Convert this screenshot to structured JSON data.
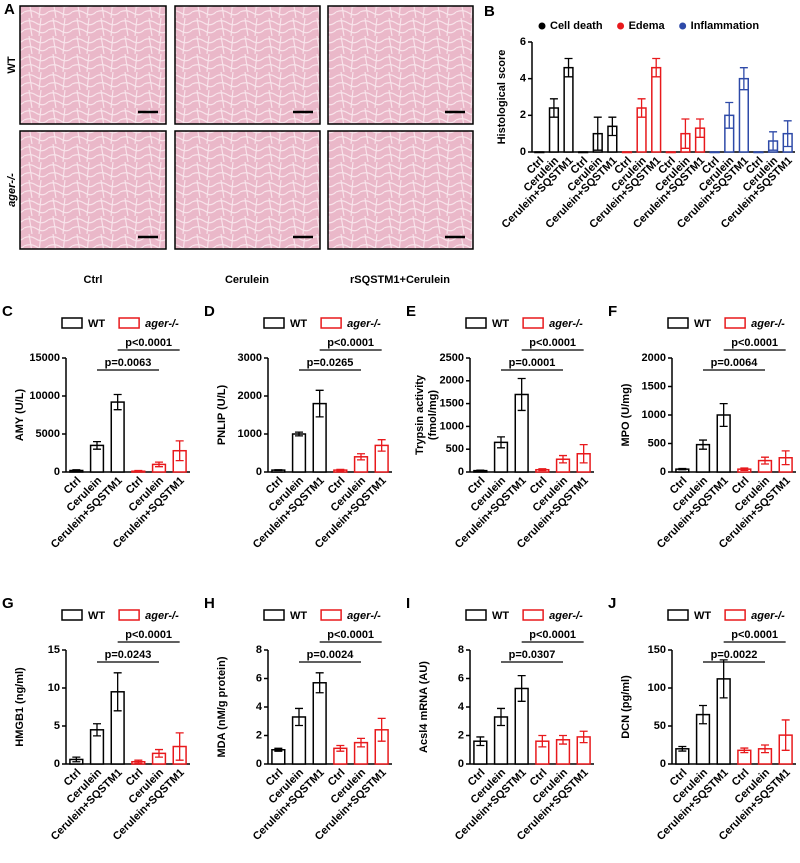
{
  "panel_a": {
    "letter": "A",
    "rows": [
      "WT",
      "ager-/-"
    ],
    "columns": [
      "Ctrl",
      "Cerulein",
      "rSQSTM1+Cerulein"
    ]
  },
  "chart_data": [
    {
      "type": "bar",
      "panel": "B",
      "ylabel": "Histological score",
      "ylim": [
        0,
        6
      ],
      "yticks": [
        0,
        2,
        4,
        6
      ],
      "categories": [
        "Ctrl",
        "Cerulein",
        "Cerulein+SQSTM1",
        "Ctrl",
        "Cerulein",
        "Cerulein+SQSTM1"
      ],
      "series": [
        {
          "name": "Cell death",
          "color": "#000000",
          "values": [
            0,
            2.4,
            4.6,
            0,
            1.0,
            1.4
          ],
          "errors": [
            0,
            0.5,
            0.5,
            0,
            0.9,
            0.5
          ]
        },
        {
          "name": "Edema",
          "color": "#e8191c",
          "values": [
            0,
            2.4,
            4.6,
            0,
            1.0,
            1.3
          ],
          "errors": [
            0,
            0.5,
            0.5,
            0,
            0.8,
            0.5
          ]
        },
        {
          "name": "Inflammation",
          "color": "#2e4aa8",
          "values": [
            0,
            2.0,
            4.0,
            0,
            0.6,
            1.0
          ],
          "errors": [
            0,
            0.7,
            0.6,
            0,
            0.5,
            0.7
          ]
        }
      ]
    },
    {
      "type": "bar",
      "panel": "C",
      "ylabel": "AMY (U/L)",
      "ylim": [
        0,
        15000
      ],
      "yticks": [
        0,
        5000,
        10000,
        15000
      ],
      "categories": [
        "Ctrl",
        "Cerulein",
        "Cerulein+SQSTM1",
        "Ctrl",
        "Cerulein",
        "Cerulein+SQSTM1"
      ],
      "series": [
        {
          "name": "WT",
          "color": "#000000",
          "values": [
            200,
            3500,
            9200,
            null,
            null,
            null
          ],
          "errors": [
            100,
            500,
            1000,
            null,
            null,
            null
          ]
        },
        {
          "name": "ager-/-",
          "color": "#e8191c",
          "values": [
            null,
            null,
            null,
            100,
            1000,
            2800
          ],
          "errors": [
            null,
            null,
            null,
            100,
            300,
            1300
          ]
        }
      ],
      "annotations": [
        "p=0.0063",
        "p<0.0001"
      ]
    },
    {
      "type": "bar",
      "panel": "D",
      "ylabel": "PNLIP (U/L)",
      "ylim": [
        0,
        3000
      ],
      "yticks": [
        0,
        1000,
        2000,
        3000
      ],
      "categories": [
        "Ctrl",
        "Cerulein",
        "Cerulein+SQSTM1",
        "Ctrl",
        "Cerulein",
        "Cerulein+SQSTM1"
      ],
      "series": [
        {
          "name": "WT",
          "color": "#000000",
          "values": [
            50,
            1000,
            1800,
            null,
            null,
            null
          ],
          "errors": [
            10,
            50,
            350,
            null,
            null,
            null
          ]
        },
        {
          "name": "ager-/-",
          "color": "#e8191c",
          "values": [
            null,
            null,
            null,
            50,
            400,
            700
          ],
          "errors": [
            null,
            null,
            null,
            20,
            80,
            150
          ]
        }
      ],
      "annotations": [
        "p=0.0265",
        "p<0.0001"
      ]
    },
    {
      "type": "bar",
      "panel": "E",
      "ylabel": [
        "Trypsin activity",
        "(fmol/mg)"
      ],
      "ylim": [
        0,
        2500
      ],
      "yticks": [
        0,
        500,
        1000,
        1500,
        2000,
        2500
      ],
      "categories": [
        "Ctrl",
        "Cerulein",
        "Cerulein+SQSTM1",
        "Ctrl",
        "Cerulein",
        "Cerulein+SQSTM1"
      ],
      "series": [
        {
          "name": "WT",
          "color": "#000000",
          "values": [
            30,
            650,
            1700,
            null,
            null,
            null
          ],
          "errors": [
            10,
            120,
            350,
            null,
            null,
            null
          ]
        },
        {
          "name": "ager-/-",
          "color": "#e8191c",
          "values": [
            null,
            null,
            null,
            50,
            280,
            400
          ],
          "errors": [
            null,
            null,
            null,
            20,
            80,
            200
          ]
        }
      ],
      "annotations": [
        "p=0.0001",
        "p<0.0001"
      ]
    },
    {
      "type": "bar",
      "panel": "F",
      "ylabel": "MPO (U/mg)",
      "ylim": [
        0,
        2000
      ],
      "yticks": [
        0,
        500,
        1000,
        1500,
        2000
      ],
      "categories": [
        "Ctrl",
        "Cerulein",
        "Cerulein+SQSTM1",
        "Ctrl",
        "Cerulein",
        "Cerulein+SQSTM1"
      ],
      "series": [
        {
          "name": "WT",
          "color": "#000000",
          "values": [
            50,
            480,
            1000,
            null,
            null,
            null
          ],
          "errors": [
            10,
            80,
            200,
            null,
            null,
            null
          ]
        },
        {
          "name": "ager-/-",
          "color": "#e8191c",
          "values": [
            null,
            null,
            null,
            50,
            200,
            250
          ],
          "errors": [
            null,
            null,
            null,
            20,
            60,
            120
          ]
        }
      ],
      "annotations": [
        "p=0.0064",
        "p<0.0001"
      ]
    },
    {
      "type": "bar",
      "panel": "G",
      "ylabel": "HMGB1 (ng/ml)",
      "ylim": [
        0,
        15
      ],
      "yticks": [
        0,
        5,
        10,
        15
      ],
      "categories": [
        "Ctrl",
        "Cerulein",
        "Cerulein+SQSTM1",
        "Ctrl",
        "Cerulein",
        "Cerulein+SQSTM1"
      ],
      "series": [
        {
          "name": "WT",
          "color": "#000000",
          "values": [
            0.6,
            4.5,
            9.5,
            null,
            null,
            null
          ],
          "errors": [
            0.3,
            0.8,
            2.5,
            null,
            null,
            null
          ]
        },
        {
          "name": "ager-/-",
          "color": "#e8191c",
          "values": [
            null,
            null,
            null,
            0.3,
            1.4,
            2.3
          ],
          "errors": [
            null,
            null,
            null,
            0.2,
            0.5,
            1.8
          ]
        }
      ],
      "annotations": [
        "p=0.0243",
        "p<0.0001"
      ]
    },
    {
      "type": "bar",
      "panel": "H",
      "ylabel": "MDA (nM/g protein)",
      "ylim": [
        0,
        8
      ],
      "yticks": [
        0,
        2,
        4,
        6,
        8
      ],
      "categories": [
        "Ctrl",
        "Cerulein",
        "Cerulein+SQSTM1",
        "Ctrl",
        "Cerulein",
        "Cerulein+SQSTM1"
      ],
      "series": [
        {
          "name": "WT",
          "color": "#000000",
          "values": [
            1.0,
            3.3,
            5.7,
            null,
            null,
            null
          ],
          "errors": [
            0.1,
            0.6,
            0.7,
            null,
            null,
            null
          ]
        },
        {
          "name": "ager-/-",
          "color": "#e8191c",
          "values": [
            null,
            null,
            null,
            1.1,
            1.5,
            2.4
          ],
          "errors": [
            null,
            null,
            null,
            0.2,
            0.3,
            0.8
          ]
        }
      ],
      "annotations": [
        "p=0.0024",
        "p<0.0001"
      ]
    },
    {
      "type": "bar",
      "panel": "I",
      "ylabel": "Acsl4 mRNA (AU)",
      "ylim": [
        0,
        8
      ],
      "yticks": [
        0,
        2,
        4,
        6,
        8
      ],
      "categories": [
        "Ctrl",
        "Cerulein",
        "Cerulein+SQSTM1",
        "Ctrl",
        "Cerulein",
        "Cerulein+SQSTM1"
      ],
      "series": [
        {
          "name": "WT",
          "color": "#000000",
          "values": [
            1.6,
            3.3,
            5.3,
            null,
            null,
            null
          ],
          "errors": [
            0.3,
            0.6,
            0.9,
            null,
            null,
            null
          ]
        },
        {
          "name": "ager-/-",
          "color": "#e8191c",
          "values": [
            null,
            null,
            null,
            1.6,
            1.7,
            1.9
          ],
          "errors": [
            null,
            null,
            null,
            0.4,
            0.3,
            0.4
          ]
        }
      ],
      "annotations": [
        "p=0.0307",
        "p<0.0001"
      ]
    },
    {
      "type": "bar",
      "panel": "J",
      "ylabel": "DCN (pg/ml)",
      "ylim": [
        0,
        150
      ],
      "yticks": [
        0,
        50,
        100,
        150
      ],
      "categories": [
        "Ctrl",
        "Cerulein",
        "Cerulein+SQSTM1",
        "Ctrl",
        "Cerulein",
        "Cerulein+SQSTM1"
      ],
      "series": [
        {
          "name": "WT",
          "color": "#000000",
          "values": [
            20,
            65,
            112,
            null,
            null,
            null
          ],
          "errors": [
            3,
            12,
            25,
            null,
            null,
            null
          ]
        },
        {
          "name": "ager-/-",
          "color": "#e8191c",
          "values": [
            null,
            null,
            null,
            18,
            20,
            38
          ],
          "errors": [
            null,
            null,
            null,
            3,
            5,
            20
          ]
        }
      ],
      "annotations": [
        "p=0.0022",
        "p<0.0001"
      ]
    }
  ]
}
